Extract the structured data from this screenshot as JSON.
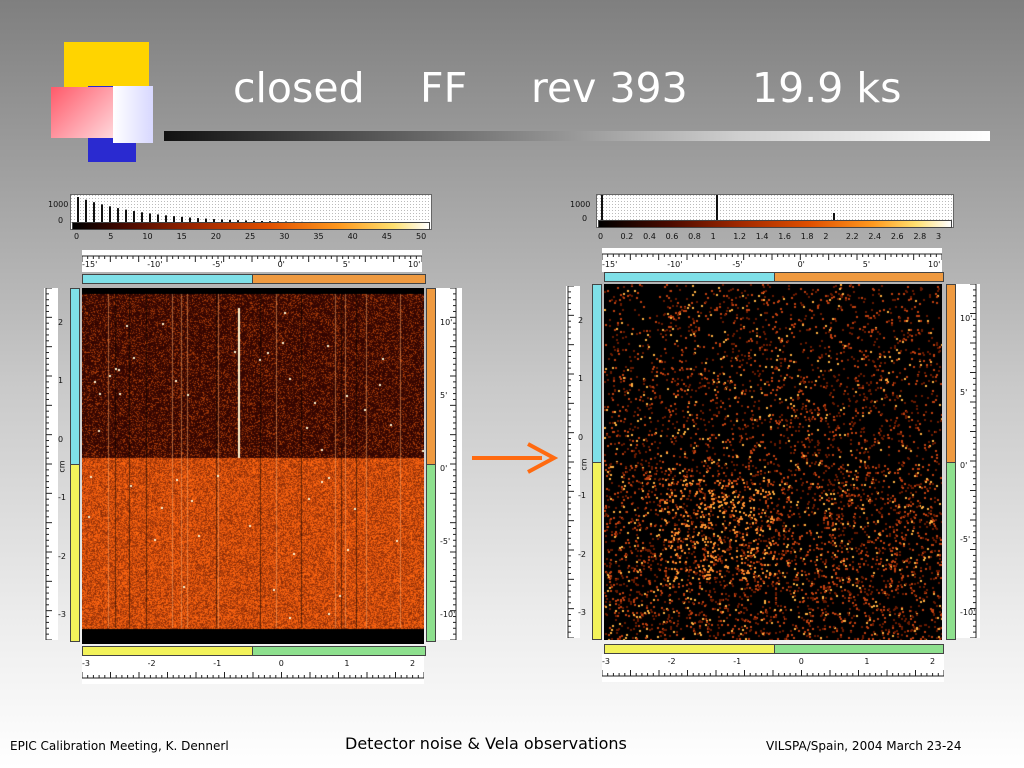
{
  "title": {
    "mode": "closed",
    "window": "FF",
    "revolution": "rev 393",
    "exposure": "19.9 ks"
  },
  "footer": {
    "left": "EPIC Calibration Meeting, K. Dennerl",
    "center": "Detector noise & Vela observations",
    "right": "VILSPA/Spain, 2004 March 23-24"
  },
  "left_panel": {
    "hist_y_labels": [
      "1000",
      "0"
    ],
    "hist_x_labels": [
      "0",
      "5",
      "10",
      "15",
      "20",
      "25",
      "30",
      "35",
      "40",
      "45",
      "50"
    ],
    "arcmin_top_labels": [
      "-15'",
      "-10'",
      "-5'",
      "0'",
      "5'",
      "10'"
    ],
    "cm_y_labels": [
      "2",
      "1",
      "0",
      "-1",
      "-2",
      "-3"
    ],
    "cm_x_labels": [
      "-3",
      "-2",
      "-1",
      "0",
      "1",
      "2"
    ],
    "cm_unit": "cm",
    "arcmin_right_labels": [
      "10'",
      "5'",
      "0'",
      "-5'",
      "-10'"
    ]
  },
  "right_panel": {
    "hist_y_labels": [
      "1000",
      "0"
    ],
    "hist_x_labels": [
      "0",
      "0.2",
      "0.4",
      "0.6",
      "0.8",
      "1",
      "1.2",
      "1.4",
      "1.6",
      "1.8",
      "2",
      "2.2",
      "2.4",
      "2.6",
      "2.8",
      "3"
    ],
    "arcmin_top_labels": [
      "-15'",
      "-10'",
      "-5'",
      "0'",
      "5'",
      "10'"
    ],
    "cm_y_labels": [
      "2",
      "1",
      "0",
      "-1",
      "-2",
      "-3"
    ],
    "cm_x_labels": [
      "-3",
      "-2",
      "-1",
      "0",
      "1",
      "2"
    ],
    "cm_unit": "cm",
    "arcmin_right_labels": [
      "10'",
      "5'",
      "0'",
      "-5'",
      "-10'"
    ]
  },
  "colors": {
    "arrow": "#ff6a10",
    "ccd_cyan": "#7fe0e8",
    "ccd_orange": "#ef9a40",
    "ccd_green": "#8ee08e",
    "ccd_yellow": "#f2f25a"
  }
}
